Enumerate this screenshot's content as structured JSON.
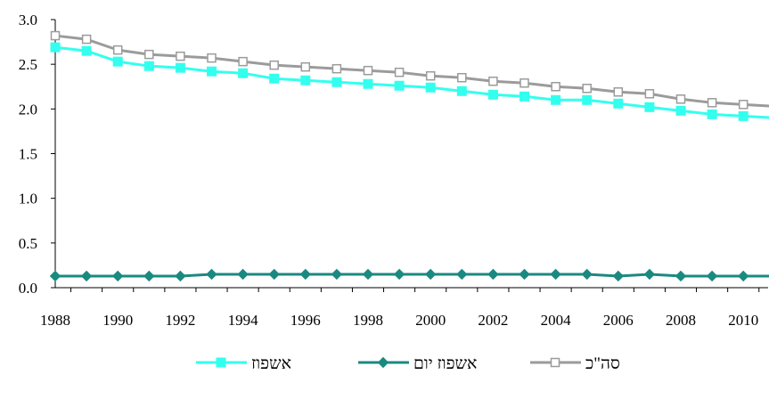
{
  "chart_data": {
    "type": "line",
    "x": [
      1988,
      1989,
      1990,
      1991,
      1992,
      1993,
      1994,
      1995,
      1996,
      1997,
      1998,
      1999,
      2000,
      2001,
      2002,
      2003,
      2004,
      2005,
      2006,
      2007,
      2008,
      2009,
      2010,
      2011
    ],
    "x_ticks": [
      "1988",
      "1990",
      "1992",
      "1994",
      "1996",
      "1998",
      "2000",
      "2002",
      "2004",
      "2006",
      "2008",
      "2010"
    ],
    "y_ticks": [
      "0.0",
      "0.5",
      "1.0",
      "1.5",
      "2.0",
      "2.5",
      "3.0"
    ],
    "ylim": [
      0,
      3.0
    ],
    "grid": false,
    "legend_position": "bottom",
    "series": [
      {
        "name": "אשפוז",
        "color": "#33ffee",
        "marker": "square-filled",
        "values": [
          2.69,
          2.65,
          2.53,
          2.48,
          2.46,
          2.42,
          2.4,
          2.34,
          2.32,
          2.3,
          2.28,
          2.26,
          2.24,
          2.2,
          2.16,
          2.14,
          2.1,
          2.1,
          2.06,
          2.02,
          1.98,
          1.94,
          1.92,
          1.9
        ]
      },
      {
        "name": "אשפוז יום",
        "color": "#1a8a80",
        "marker": "diamond-filled",
        "values": [
          0.13,
          0.13,
          0.13,
          0.13,
          0.13,
          0.15,
          0.15,
          0.15,
          0.15,
          0.15,
          0.15,
          0.15,
          0.15,
          0.15,
          0.15,
          0.15,
          0.15,
          0.15,
          0.13,
          0.15,
          0.13,
          0.13,
          0.13,
          0.13
        ]
      },
      {
        "name": "סה\"כ",
        "color": "#9b9b9b",
        "marker": "square-open",
        "values": [
          2.82,
          2.78,
          2.66,
          2.61,
          2.59,
          2.57,
          2.53,
          2.49,
          2.47,
          2.45,
          2.43,
          2.41,
          2.37,
          2.35,
          2.31,
          2.29,
          2.25,
          2.23,
          2.19,
          2.17,
          2.11,
          2.07,
          2.05,
          2.03
        ]
      }
    ]
  }
}
